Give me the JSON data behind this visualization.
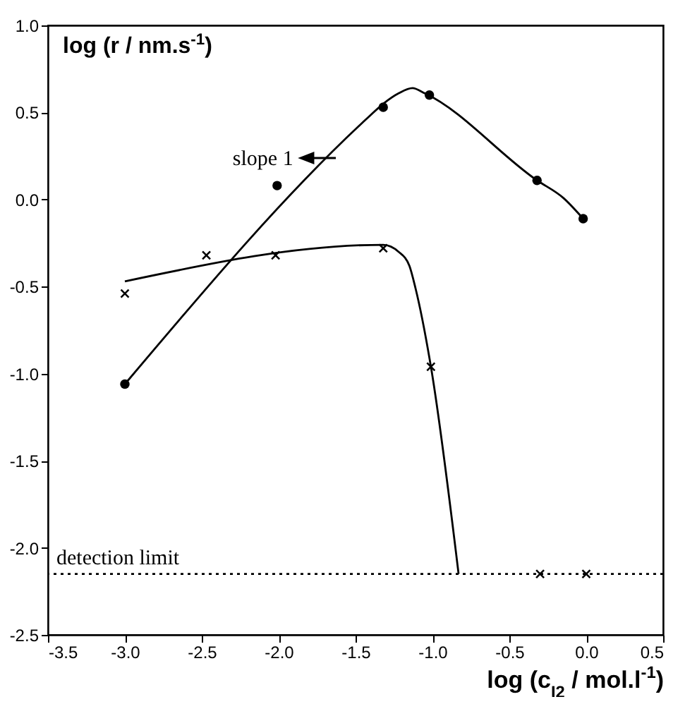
{
  "chart_data": {
    "type": "scatter",
    "xlabel": "log (c$_{I2}$ / mol.l$^{-1}$)",
    "ylabel": "log (r / nm.s$^{-1}$)",
    "xlim": [
      -3.5,
      0.5
    ],
    "xticks": [
      {
        "value": -3.5,
        "label": "-3.5"
      },
      {
        "value": -3,
        "label": "-3.0"
      },
      {
        "value": -2.5,
        "label": "-2.5"
      },
      {
        "value": -2,
        "label": "-2.0"
      },
      {
        "value": -1.5,
        "label": "-1.5"
      },
      {
        "value": -1,
        "label": "-1.0"
      },
      {
        "value": -0.5,
        "label": "-0.5"
      },
      {
        "value": 0,
        "label": "0.0"
      },
      {
        "value": 0.5,
        "label": "0.5"
      }
    ],
    "ylim": [
      -2.5,
      1.0
    ],
    "yticks": [
      {
        "value": -2.5,
        "label": "-2.5"
      },
      {
        "value": -2,
        "label": "-2.0"
      },
      {
        "value": -1.5,
        "label": "-1.5"
      },
      {
        "value": -1,
        "label": "-1.0"
      },
      {
        "value": -0.5,
        "label": "-0.5"
      },
      {
        "value": 0,
        "label": "0.0"
      },
      {
        "value": 0.5,
        "label": "0.5"
      },
      {
        "value": 1,
        "label": "1.0"
      }
    ],
    "series": [
      {
        "marker": "circle",
        "color": "#000000",
        "x": [
          -3.0,
          -2.01,
          -1.32,
          -1.02,
          -0.32,
          -0.02
        ],
        "values": [
          -1.06,
          0.08,
          0.53,
          0.6,
          0.11,
          -0.11
        ]
      },
      {
        "marker": "cross",
        "color": "#000000",
        "x": [
          -3.0,
          -2.47,
          -2.02,
          -1.32,
          -1.01,
          -0.3,
          0.0
        ],
        "values": [
          -0.54,
          -0.32,
          -0.32,
          -0.28,
          -0.96,
          -2.15,
          -2.15
        ]
      },
      {
        "type": "line",
        "marker": "none",
        "line_style": "solid",
        "color": "#000000",
        "x": [
          -3.0,
          -1.42,
          -1.32,
          -1.22,
          -1.13,
          -1.05,
          -0.32,
          -0.15,
          -0.02
        ],
        "values": [
          -1.06,
          0.47,
          0.55,
          0.61,
          0.64,
          0.61,
          0.11,
          0.01,
          -0.11
        ]
      },
      {
        "type": "line",
        "marker": "none",
        "line_style": "solid",
        "color": "#000000",
        "x": [
          -3.0,
          -1.32,
          -1.22,
          -1.15,
          -1.11,
          -1.01,
          -0.83
        ],
        "values": [
          -0.47,
          -0.26,
          -0.3,
          -0.38,
          -0.51,
          -0.96,
          -2.15
        ]
      }
    ],
    "ref_lines": [
      {
        "axis": "y",
        "value": -2.15,
        "label": "detection limit",
        "line_style": "dotted",
        "color": "#000000"
      }
    ],
    "annotations": [
      {
        "text": "slope 1",
        "x": -1.63,
        "y": 0.24
      }
    ],
    "grid": false
  }
}
